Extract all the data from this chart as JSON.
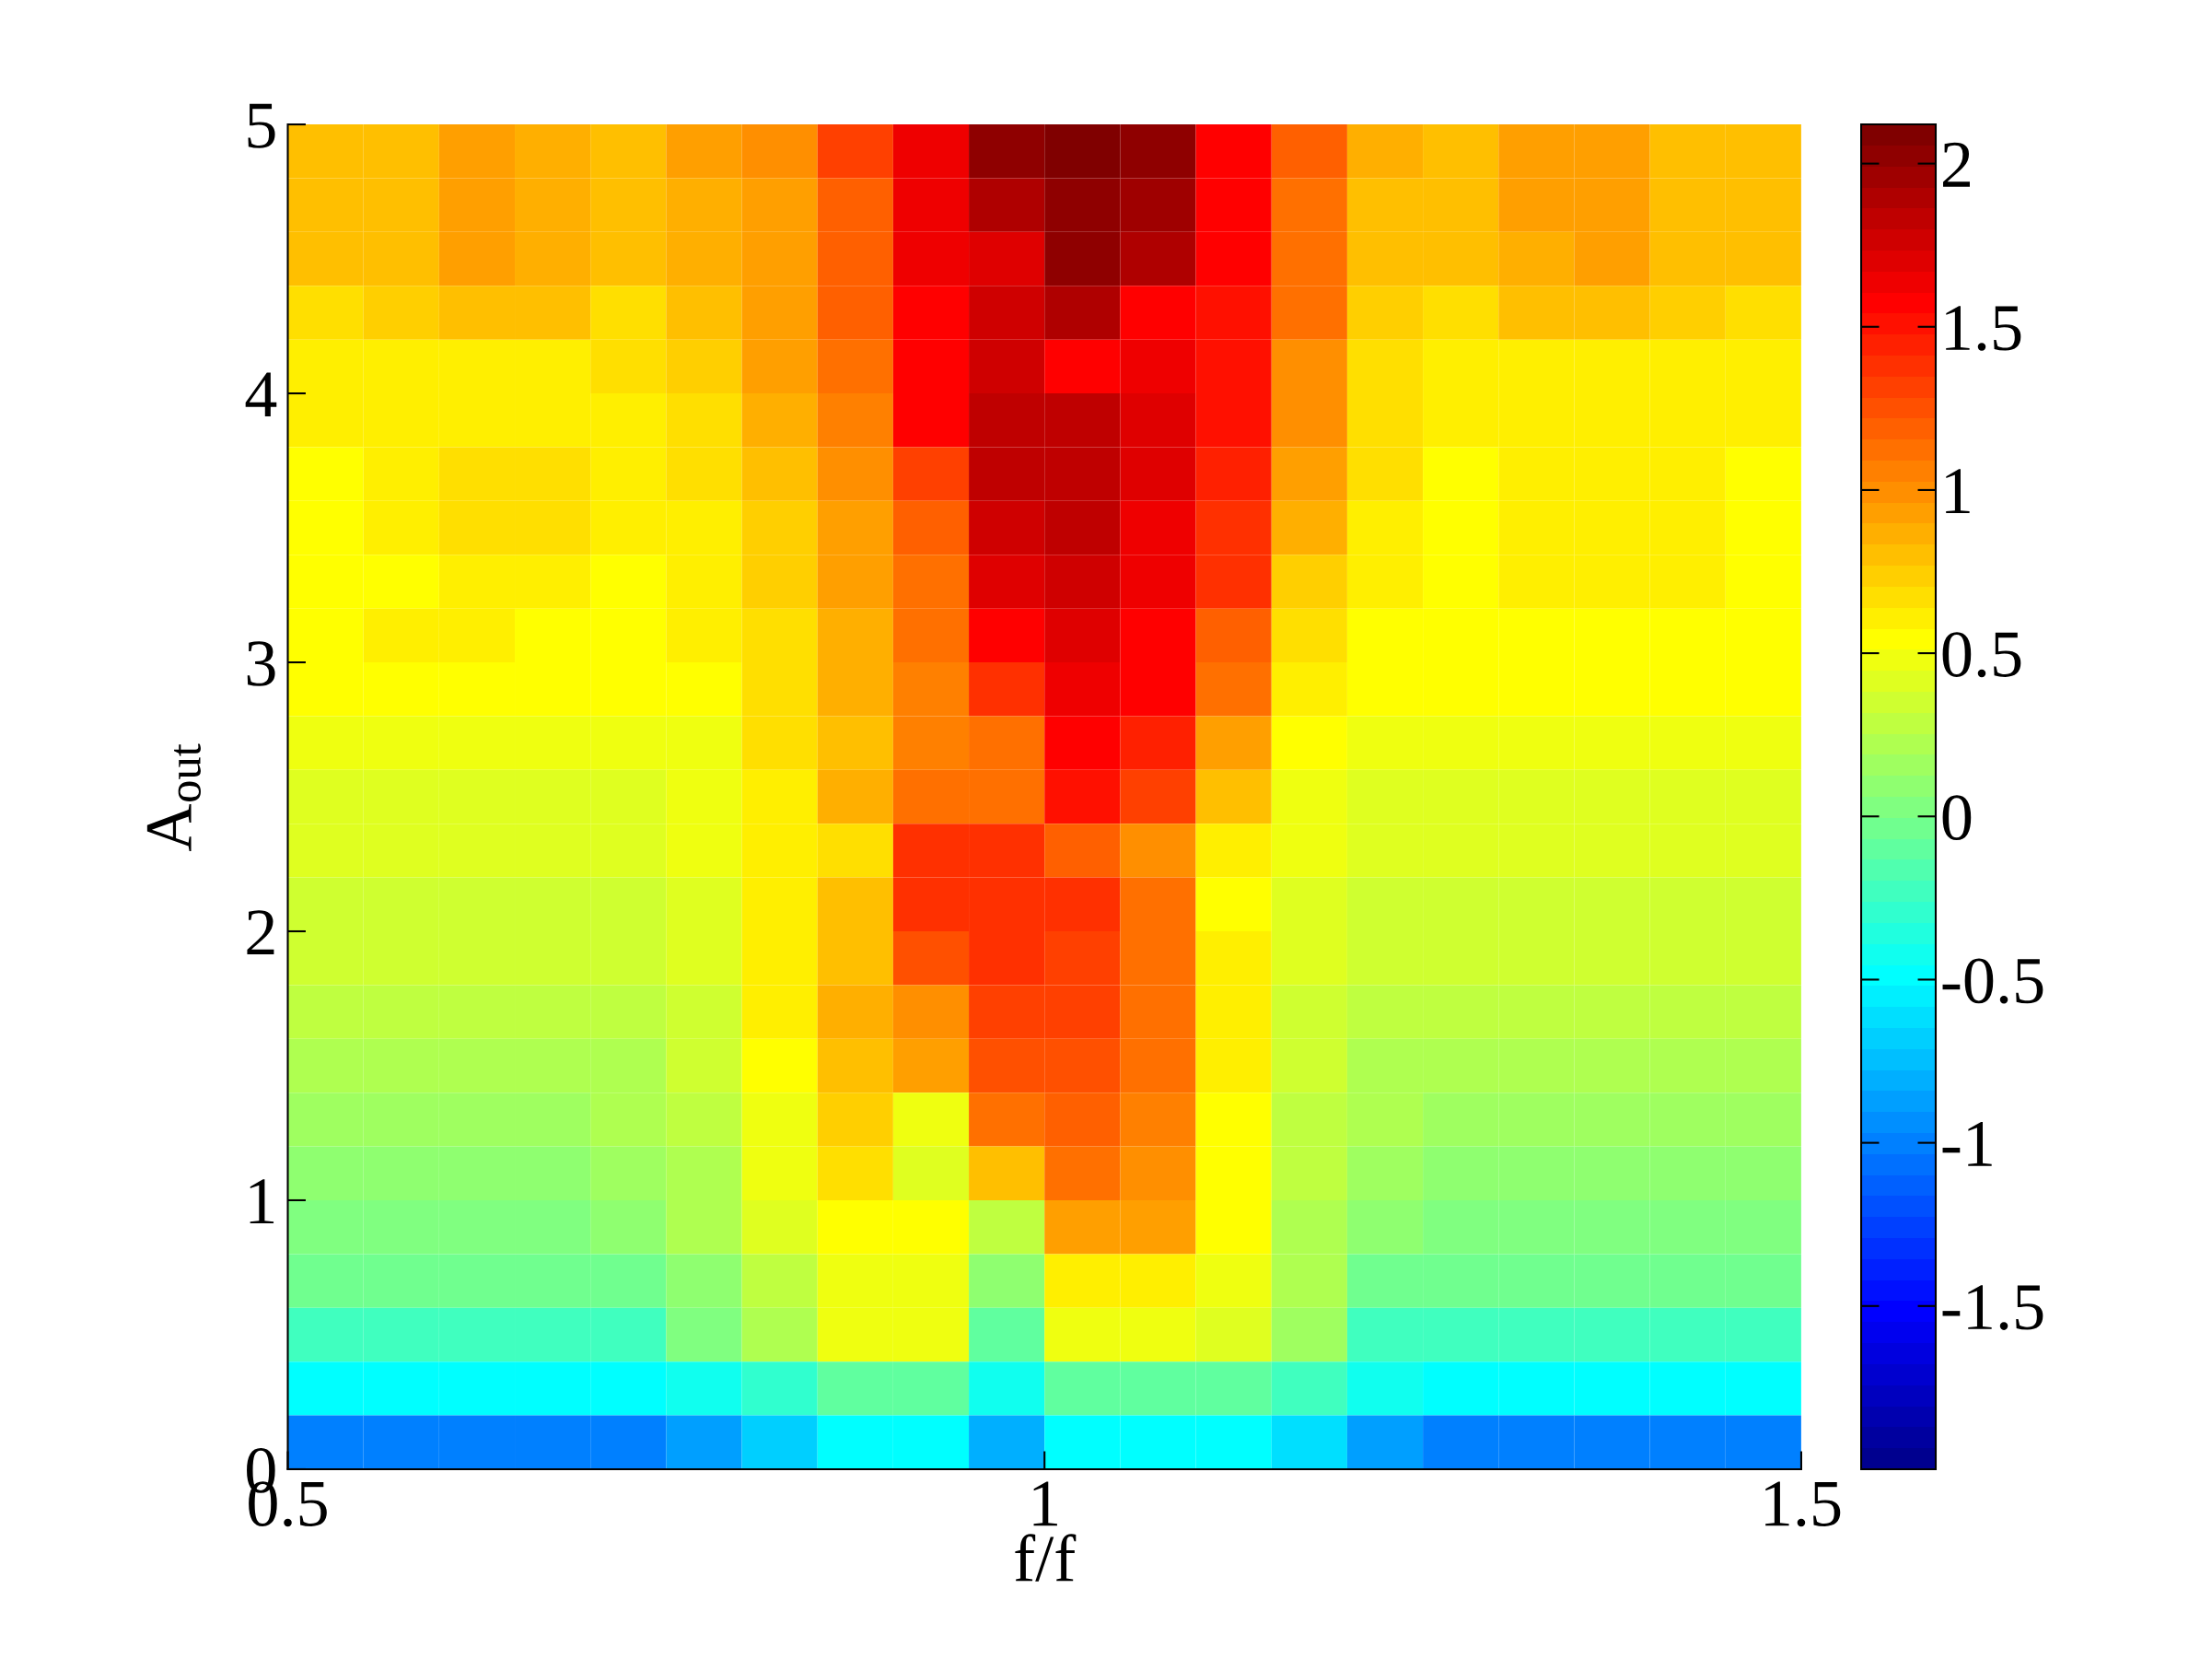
{
  "chart_data": {
    "type": "heatmap",
    "xlabel": "f/f",
    "ylabel": "A$_{out}$",
    "x": [
      0.525,
      0.575,
      0.625,
      0.675,
      0.725,
      0.775,
      0.825,
      0.875,
      0.925,
      0.975,
      1.025,
      1.075,
      1.125,
      1.175,
      1.225,
      1.275,
      1.325,
      1.375,
      1.425,
      1.475
    ],
    "y": [
      4.9,
      4.7,
      4.5,
      4.3,
      4.1,
      3.9,
      3.7,
      3.5,
      3.3,
      3.1,
      2.9,
      2.7,
      2.5,
      2.3,
      2.1,
      1.9,
      1.7,
      1.5,
      1.3,
      1.1,
      0.9,
      0.7,
      0.5,
      0.3,
      0.1
    ],
    "xlim": [
      0.5,
      1.5
    ],
    "xticks": [
      0.5,
      1,
      1.5
    ],
    "ylim": [
      0,
      5
    ],
    "yticks": [
      0,
      1,
      2,
      3,
      4,
      5
    ],
    "clim": [
      -2.0,
      2.12
    ],
    "cticks": [
      -1.5,
      -1,
      -0.5,
      0,
      0.5,
      1,
      1.5,
      2
    ],
    "cells": [
      [
        0.8,
        0.8,
        0.9,
        0.85,
        0.8,
        0.9,
        1.0,
        1.3,
        1.65,
        2.0,
        2.1,
        2.0,
        1.6,
        1.2,
        0.85,
        0.8,
        0.9,
        0.9,
        0.8,
        0.8
      ],
      [
        0.8,
        0.8,
        0.9,
        0.85,
        0.8,
        0.85,
        0.95,
        1.2,
        1.65,
        1.9,
        2.05,
        1.95,
        1.6,
        1.15,
        0.8,
        0.8,
        0.9,
        0.9,
        0.8,
        0.8
      ],
      [
        0.78,
        0.8,
        0.9,
        0.85,
        0.78,
        0.85,
        0.95,
        1.2,
        1.65,
        1.7,
        2.0,
        1.9,
        1.55,
        1.1,
        0.8,
        0.78,
        0.85,
        0.9,
        0.8,
        0.78
      ],
      [
        0.7,
        0.72,
        0.8,
        0.78,
        0.7,
        0.8,
        0.95,
        1.2,
        1.6,
        1.75,
        1.9,
        1.6,
        1.5,
        1.1,
        0.75,
        0.7,
        0.8,
        0.8,
        0.72,
        0.7
      ],
      [
        0.62,
        0.62,
        0.62,
        0.62,
        0.65,
        0.75,
        0.9,
        1.1,
        1.6,
        1.75,
        1.6,
        1.65,
        1.5,
        1.0,
        0.7,
        0.62,
        0.62,
        0.62,
        0.62,
        0.62
      ],
      [
        0.58,
        0.58,
        0.6,
        0.6,
        0.6,
        0.7,
        0.85,
        1.05,
        1.55,
        1.8,
        1.85,
        1.7,
        1.5,
        1.0,
        0.65,
        0.58,
        0.6,
        0.6,
        0.58,
        0.58
      ],
      [
        0.57,
        0.58,
        0.65,
        0.65,
        0.6,
        0.65,
        0.8,
        1.0,
        1.3,
        1.8,
        1.85,
        1.7,
        1.45,
        0.95,
        0.65,
        0.57,
        0.6,
        0.62,
        0.6,
        0.57
      ],
      [
        0.56,
        0.58,
        0.65,
        0.65,
        0.58,
        0.62,
        0.75,
        0.95,
        1.2,
        1.75,
        1.8,
        1.65,
        1.4,
        0.85,
        0.62,
        0.56,
        0.63,
        0.63,
        0.6,
        0.56
      ],
      [
        0.55,
        0.57,
        0.62,
        0.62,
        0.57,
        0.6,
        0.72,
        0.9,
        1.15,
        1.7,
        1.75,
        1.65,
        1.35,
        0.75,
        0.58,
        0.55,
        0.6,
        0.62,
        0.6,
        0.55
      ],
      [
        0.54,
        0.58,
        0.58,
        0.56,
        0.55,
        0.58,
        0.7,
        0.85,
        1.1,
        1.6,
        1.7,
        1.6,
        1.2,
        0.65,
        0.55,
        0.54,
        0.55,
        0.56,
        0.56,
        0.54
      ],
      [
        0.52,
        0.52,
        0.52,
        0.52,
        0.52,
        0.55,
        0.68,
        0.85,
        1.05,
        1.4,
        1.65,
        1.55,
        1.1,
        0.6,
        0.52,
        0.52,
        0.52,
        0.52,
        0.52,
        0.52
      ],
      [
        0.45,
        0.45,
        0.45,
        0.45,
        0.46,
        0.5,
        0.65,
        0.8,
        1.05,
        1.1,
        1.6,
        1.45,
        0.9,
        0.55,
        0.47,
        0.45,
        0.45,
        0.45,
        0.45,
        0.45
      ],
      [
        0.42,
        0.42,
        0.42,
        0.42,
        0.43,
        0.5,
        0.6,
        0.85,
        1.1,
        1.1,
        1.5,
        1.3,
        0.8,
        0.5,
        0.43,
        0.42,
        0.42,
        0.42,
        0.42,
        0.42
      ],
      [
        0.4,
        0.4,
        0.4,
        0.4,
        0.4,
        0.45,
        0.6,
        0.7,
        1.4,
        1.4,
        1.2,
        1.0,
        0.6,
        0.45,
        0.4,
        0.4,
        0.4,
        0.4,
        0.4,
        0.4
      ],
      [
        0.36,
        0.36,
        0.36,
        0.36,
        0.37,
        0.42,
        0.6,
        0.8,
        1.35,
        1.4,
        1.35,
        1.1,
        0.55,
        0.42,
        0.37,
        0.36,
        0.36,
        0.36,
        0.36,
        0.36
      ],
      [
        0.32,
        0.32,
        0.32,
        0.32,
        0.33,
        0.4,
        0.6,
        0.8,
        1.25,
        1.35,
        1.3,
        1.15,
        0.6,
        0.4,
        0.33,
        0.32,
        0.32,
        0.32,
        0.32,
        0.32
      ],
      [
        0.28,
        0.28,
        0.28,
        0.28,
        0.29,
        0.38,
        0.6,
        0.85,
        1.0,
        1.3,
        1.3,
        1.15,
        0.6,
        0.38,
        0.29,
        0.28,
        0.28,
        0.28,
        0.28,
        0.28
      ],
      [
        0.23,
        0.23,
        0.23,
        0.23,
        0.24,
        0.35,
        0.55,
        0.8,
        0.9,
        1.25,
        1.25,
        1.1,
        0.6,
        0.35,
        0.24,
        0.23,
        0.23,
        0.23,
        0.23,
        0.23
      ],
      [
        0.18,
        0.18,
        0.18,
        0.18,
        0.19,
        0.3,
        0.5,
        0.75,
        0.5,
        1.15,
        1.2,
        1.05,
        0.55,
        0.3,
        0.19,
        0.18,
        0.18,
        0.18,
        0.18,
        0.18
      ],
      [
        0.12,
        0.12,
        0.12,
        0.12,
        0.13,
        0.25,
        0.45,
        0.65,
        0.4,
        0.8,
        1.1,
        1.0,
        0.55,
        0.28,
        0.13,
        0.12,
        0.12,
        0.12,
        0.12,
        0.12
      ],
      [
        0.05,
        0.05,
        0.05,
        0.05,
        0.06,
        0.2,
        0.4,
        0.55,
        0.55,
        0.3,
        0.95,
        0.9,
        0.55,
        0.25,
        0.07,
        0.05,
        0.05,
        0.05,
        0.05,
        0.05
      ],
      [
        -0.05,
        -0.05,
        -0.05,
        -0.05,
        -0.04,
        0.1,
        0.3,
        0.5,
        0.5,
        0.1,
        0.6,
        0.6,
        0.5,
        0.2,
        -0.03,
        -0.05,
        -0.05,
        -0.05,
        -0.05,
        -0.05
      ],
      [
        -0.25,
        -0.25,
        -0.25,
        -0.25,
        -0.24,
        0,
        0.2,
        0.45,
        0.45,
        -0.1,
        0.45,
        0.45,
        0.4,
        0.15,
        -0.2,
        -0.25,
        -0.25,
        -0.25,
        -0.25,
        -0.25
      ],
      [
        -0.5,
        -0.5,
        -0.5,
        -0.5,
        -0.5,
        -0.4,
        -0.3,
        -0.1,
        -0.1,
        -0.4,
        -0.1,
        -0.1,
        -0.1,
        -0.2,
        -0.45,
        -0.5,
        -0.5,
        -0.5,
        -0.5,
        -0.5
      ],
      [
        -1.0,
        -1.0,
        -1.0,
        -1.0,
        -1.0,
        -0.9,
        -0.7,
        -0.5,
        -0.5,
        -0.8,
        -0.5,
        -0.5,
        -0.5,
        -0.6,
        -0.9,
        -1.0,
        -1.0,
        -1.0,
        -1.0,
        -1.0
      ]
    ]
  }
}
